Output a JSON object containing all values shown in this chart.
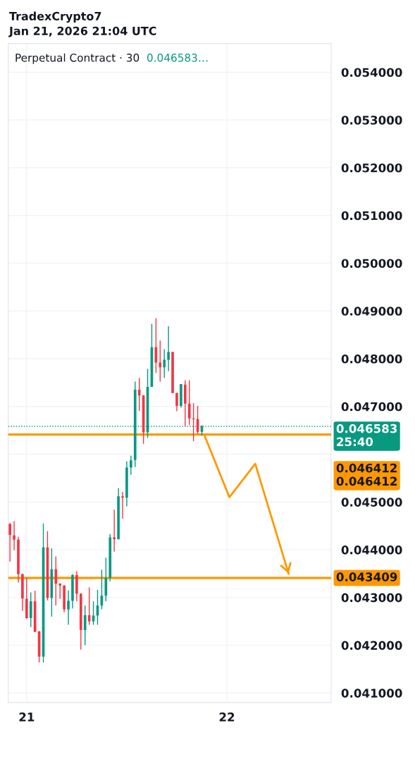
{
  "chart_data": {
    "type": "candlestick",
    "title": "TradexCrypto7",
    "subtitle": "Jan 21, 2026 21:04 UTC",
    "annotations": [
      "Perpetual Contract · 30",
      "0.046583…"
    ],
    "series": [
      {
        "x": [
          "2026-01-20T22:00",
          "2026-01-20T22:30",
          "2026-01-20T23:00",
          "2026-01-20T23:30",
          "2026-01-21T00:00",
          "2026-01-21T00:30",
          "2026-01-21T01:00",
          "2026-01-21T01:30",
          "2026-01-21T02:00",
          "2026-01-21T02:30",
          "2026-01-21T03:00",
          "2026-01-21T03:30",
          "2026-01-21T04:00",
          "2026-01-21T04:30",
          "2026-01-21T05:00",
          "2026-01-21T05:30",
          "2026-01-21T06:00",
          "2026-01-21T06:30",
          "2026-01-21T07:00",
          "2026-01-21T07:30",
          "2026-01-21T08:00",
          "2026-01-21T08:30",
          "2026-01-21T09:00",
          "2026-01-21T09:30",
          "2026-01-21T10:00",
          "2026-01-21T10:30",
          "2026-01-21T11:00",
          "2026-01-21T11:30",
          "2026-01-21T12:00",
          "2026-01-21T12:30",
          "2026-01-21T13:00",
          "2026-01-21T13:30",
          "2026-01-21T14:00",
          "2026-01-21T14:30",
          "2026-01-21T15:00",
          "2026-01-21T15:30",
          "2026-01-21T16:00",
          "2026-01-21T16:30",
          "2026-01-21T17:00",
          "2026-01-21T17:30",
          "2026-01-21T18:00",
          "2026-01-21T18:30",
          "2026-01-21T19:00",
          "2026-01-21T19:30",
          "2026-01-21T20:00",
          "2026-01-21T20:30",
          "2026-01-21T21:00"
        ],
        "ohlc": [
          [
            0.04454,
            0.04456,
            0.04375,
            0.04431
          ],
          [
            0.0443,
            0.0446,
            0.04399,
            0.04421
          ],
          [
            0.04421,
            0.04427,
            0.04331,
            0.04349
          ],
          [
            0.04349,
            0.0435,
            0.04272,
            0.04298
          ],
          [
            0.04297,
            0.04341,
            0.04255,
            0.04257
          ],
          [
            0.04257,
            0.04311,
            0.04238,
            0.04292
          ],
          [
            0.04292,
            0.04314,
            0.04228,
            0.04228
          ],
          [
            0.04229,
            0.0423,
            0.04164,
            0.04176
          ],
          [
            0.04176,
            0.04455,
            0.04164,
            0.04405
          ],
          [
            0.04405,
            0.04439,
            0.04294,
            0.04299
          ],
          [
            0.04299,
            0.04403,
            0.0426,
            0.04359
          ],
          [
            0.04359,
            0.04386,
            0.04283,
            0.04329
          ],
          [
            0.04329,
            0.0433,
            0.04297,
            0.04325
          ],
          [
            0.04325,
            0.04326,
            0.04269,
            0.04275
          ],
          [
            0.04275,
            0.04315,
            0.04243,
            0.04293
          ],
          [
            0.04293,
            0.04349,
            0.04277,
            0.04347
          ],
          [
            0.04347,
            0.04355,
            0.04292,
            0.04308
          ],
          [
            0.04308,
            0.04309,
            0.04191,
            0.04232
          ],
          [
            0.04232,
            0.04283,
            0.042,
            0.04263
          ],
          [
            0.04263,
            0.04321,
            0.04243,
            0.0425
          ],
          [
            0.0425,
            0.04292,
            0.04243,
            0.04262
          ],
          [
            0.04262,
            0.04316,
            0.04243,
            0.04283
          ],
          [
            0.04283,
            0.04358,
            0.04275,
            0.04304
          ],
          [
            0.04304,
            0.04383,
            0.04292,
            0.04341
          ],
          [
            0.04341,
            0.04433,
            0.04334,
            0.04426
          ],
          [
            0.04426,
            0.04484,
            0.04396,
            0.04422
          ],
          [
            0.04422,
            0.04529,
            0.04422,
            0.04512
          ],
          [
            0.04512,
            0.04521,
            0.04465,
            0.04509
          ],
          [
            0.04509,
            0.04585,
            0.04491,
            0.04572
          ],
          [
            0.04572,
            0.04597,
            0.04557,
            0.04587
          ],
          [
            0.04588,
            0.04752,
            0.04573,
            0.04735
          ],
          [
            0.04735,
            0.0476,
            0.04691,
            0.04723
          ],
          [
            0.04723,
            0.04724,
            0.04622,
            0.04646
          ],
          [
            0.04646,
            0.04779,
            0.04634,
            0.04741
          ],
          [
            0.04741,
            0.04873,
            0.04741,
            0.04824
          ],
          [
            0.04824,
            0.04885,
            0.0477,
            0.04792
          ],
          [
            0.04792,
            0.04838,
            0.04752,
            0.04782
          ],
          [
            0.04782,
            0.0482,
            0.0476,
            0.04798
          ],
          [
            0.04798,
            0.04868,
            0.04774,
            0.04814
          ],
          [
            0.04814,
            0.04815,
            0.04728,
            0.04728
          ],
          [
            0.04728,
            0.04729,
            0.0469,
            0.04701
          ],
          [
            0.04701,
            0.04747,
            0.04698,
            0.04747
          ],
          [
            0.04746,
            0.04755,
            0.04659,
            0.04706
          ],
          [
            0.04706,
            0.04755,
            0.04661,
            0.04675
          ],
          [
            0.04675,
            0.04707,
            0.04627,
            0.04673
          ],
          [
            0.04674,
            0.04701,
            0.04642,
            0.04647
          ],
          [
            0.04647,
            0.04661,
            0.04639,
            0.046583
          ]
        ],
        "colors": [
          "#f23645",
          "#f23645",
          "#f23645",
          "#f23645",
          "#f23645",
          "#089981",
          "#f23645",
          "#f23645",
          "#089981",
          "#f23645",
          "#089981",
          "#f23645",
          "#f23645",
          "#f23645",
          "#089981",
          "#089981",
          "#f23645",
          "#f23645",
          "#089981",
          "#f23645",
          "#089981",
          "#089981",
          "#089981",
          "#089981",
          "#089981",
          "#f23645",
          "#089981",
          "#f23645",
          "#089981",
          "#089981",
          "#089981",
          "#f23645",
          "#f23645",
          "#089981",
          "#089981",
          "#f23645",
          "#f23645",
          "#089981",
          "#089981",
          "#f23645",
          "#f23645",
          "#089981",
          "#f23645",
          "#f23645",
          "#f23645",
          "#f23645",
          "#089981"
        ]
      },
      {
        "type": "line",
        "color": "#ff9800",
        "x": [
          "2026-01-21T21:18",
          "2026-01-22T00:18",
          "2026-01-22T03:24",
          "2026-01-22T07:24"
        ],
        "values": [
          0.0464,
          0.0451,
          0.0458,
          0.0435
        ]
      }
    ],
    "xlim": [
      "2026-01-20T21:48",
      "2026-01-22T12:30"
    ],
    "xticks": [
      {
        "value": "2026-01-21",
        "label": "21"
      },
      {
        "value": "2026-01-22",
        "label": "22"
      }
    ],
    "ylim": [
      0.0408,
      0.0546
    ],
    "yticks": [
      {
        "value": 0.041,
        "label": "0.041000"
      },
      {
        "value": 0.042,
        "label": "0.042000"
      },
      {
        "value": 0.043,
        "label": "0.043000"
      },
      {
        "value": 0.044,
        "label": "0.044000"
      },
      {
        "value": 0.045,
        "label": "0.045000"
      },
      {
        "value": 0.046,
        "label": null
      },
      {
        "value": 0.047,
        "label": "0.047000"
      },
      {
        "value": 0.048,
        "label": "0.048000"
      },
      {
        "value": 0.049,
        "label": "0.049000"
      },
      {
        "value": 0.05,
        "label": "0.050000"
      },
      {
        "value": 0.051,
        "label": "0.051000"
      },
      {
        "value": 0.052,
        "label": "0.052000"
      },
      {
        "value": 0.053,
        "label": "0.053000"
      },
      {
        "value": 0.054,
        "label": "0.054000"
      }
    ],
    "ref_lines": [
      {
        "axis": "y",
        "value": 0.046583,
        "label": "0.046583\n25:40",
        "color": "#089981",
        "line_style": "dotted"
      },
      {
        "axis": "y",
        "value": 0.046412,
        "label": "0.046412\n0.046412",
        "color": "#ff9800",
        "line_style": "solid"
      },
      {
        "axis": "y",
        "value": 0.043409,
        "label": "0.043409",
        "color": "#ff9800",
        "line_style": "solid"
      }
    ],
    "grid": true
  }
}
